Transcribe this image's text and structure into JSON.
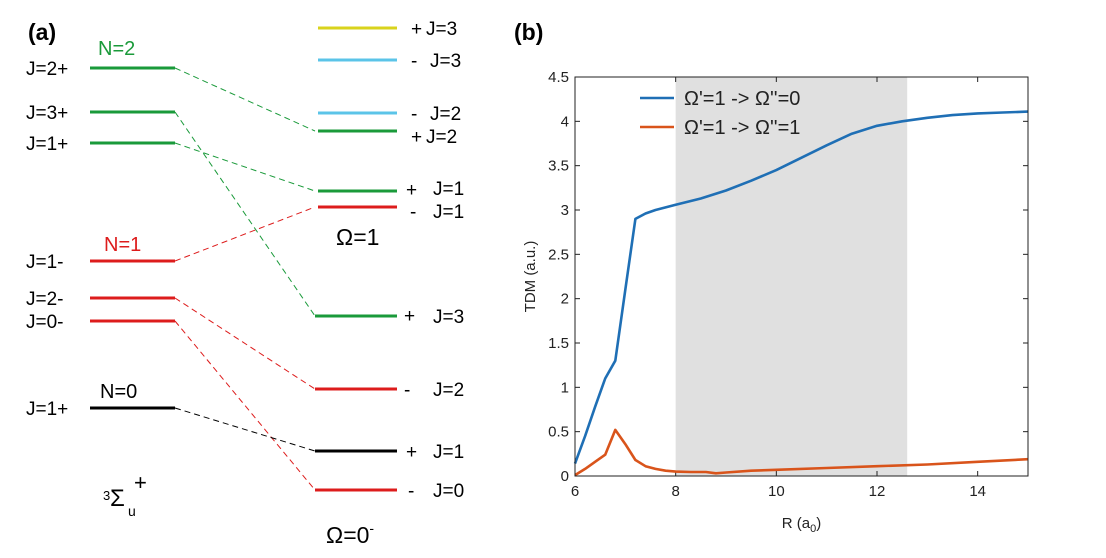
{
  "panel_a": {
    "label": "(a)",
    "colors": {
      "n2": "#1a9a3a",
      "n1": "#dd1c1c",
      "n0": "#000000",
      "cyan": "#5bc4e8",
      "yellow": "#d9d31c"
    },
    "left_levels": [
      {
        "id": "N2-J2p",
        "label": "J=2+",
        "group": "N=2"
      },
      {
        "id": "N2-J3p",
        "label": "J=3+"
      },
      {
        "id": "N2-J1p",
        "label": "J=1+"
      },
      {
        "id": "N1-J1m",
        "label": "J=1-",
        "group": "N=1"
      },
      {
        "id": "N1-J2m",
        "label": "J=2-"
      },
      {
        "id": "N1-J0m",
        "label": "J=0-"
      },
      {
        "id": "N0-J1p",
        "label": "J=1+",
        "group": "N=0"
      }
    ],
    "group_labels": {
      "n2": "N=2",
      "n1": "N=1",
      "n0": "N=0"
    },
    "right_levels": [
      {
        "id": "O1-J3p",
        "sign": "+",
        "label": "J=3"
      },
      {
        "id": "O1-J3m",
        "sign": "-",
        "label": "J=3"
      },
      {
        "id": "O1-J2m",
        "sign": "-",
        "label": "J=2"
      },
      {
        "id": "O1-J2p",
        "sign": "+",
        "label": "J=2"
      },
      {
        "id": "O1-J1p",
        "sign": "+",
        "label": "J=1"
      },
      {
        "id": "O1-J1m",
        "sign": "-",
        "label": "J=1"
      },
      {
        "id": "O0-J3p",
        "sign": "+",
        "label": "J=3"
      },
      {
        "id": "O0-J2m",
        "sign": "-",
        "label": "J=2"
      },
      {
        "id": "O0-J1p",
        "sign": "+",
        "label": "J=1"
      },
      {
        "id": "O0-J0m",
        "sign": "-",
        "label": "J=0"
      }
    ],
    "omega1_label": "Ω=1",
    "omega0_label": "Ω=0",
    "omega0_sup": "-",
    "term_symbol": {
      "pre": "3",
      "main": "Σ",
      "sub": "u",
      "sup": "+"
    }
  },
  "panel_b": {
    "label": "(b)"
  },
  "chart_data": {
    "type": "line",
    "xlabel": "R (a",
    "xlabel_sub": "0",
    "xlabel_end": ")",
    "ylabel": "TDM (a.u.)",
    "xlim": [
      6,
      15
    ],
    "ylim": [
      0,
      4.5
    ],
    "xticks": [
      6,
      8,
      10,
      12,
      14
    ],
    "yticks": [
      0,
      0.5,
      1,
      1.5,
      2,
      2.5,
      3,
      3.5,
      4,
      4.5
    ],
    "ytick_labels": [
      "0",
      "0.5",
      "1",
      "1.5",
      "2",
      "2.5",
      "3",
      "3.5",
      "4",
      "4.5"
    ],
    "shaded_region": [
      8.0,
      12.6
    ],
    "legend_position": "top",
    "series": [
      {
        "name": "Ω'=1 -> Ω''=0",
        "color": "#1f6fb5",
        "x": [
          6.0,
          6.2,
          6.4,
          6.6,
          6.8,
          7.0,
          7.2,
          7.4,
          7.6,
          8.0,
          8.5,
          9.0,
          9.5,
          10.0,
          10.5,
          11.0,
          11.5,
          12.0,
          12.5,
          13.0,
          13.5,
          14.0,
          14.5,
          15.0
        ],
        "y": [
          0.14,
          0.45,
          0.78,
          1.1,
          1.3,
          2.1,
          2.9,
          2.96,
          3.0,
          3.06,
          3.13,
          3.22,
          3.33,
          3.45,
          3.59,
          3.73,
          3.86,
          3.95,
          4.0,
          4.04,
          4.07,
          4.09,
          4.1,
          4.11
        ]
      },
      {
        "name": "Ω'=1 -> Ω''=1",
        "color": "#d9541b",
        "x": [
          6.0,
          6.2,
          6.4,
          6.6,
          6.8,
          7.0,
          7.2,
          7.4,
          7.6,
          7.8,
          8.0,
          8.3,
          8.6,
          8.8,
          9.0,
          9.5,
          10.0,
          11.0,
          12.0,
          13.0,
          14.0,
          15.0
        ],
        "y": [
          0.01,
          0.08,
          0.16,
          0.24,
          0.52,
          0.36,
          0.18,
          0.11,
          0.08,
          0.06,
          0.05,
          0.045,
          0.045,
          0.03,
          0.04,
          0.06,
          0.07,
          0.09,
          0.11,
          0.13,
          0.16,
          0.19
        ]
      }
    ]
  }
}
